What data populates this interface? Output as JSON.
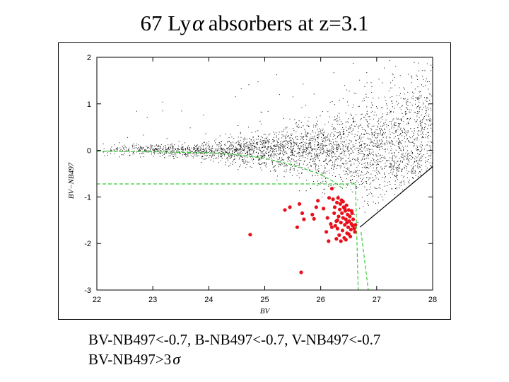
{
  "slide": {
    "title_prefix": "67 Ly",
    "title_greek": "α",
    "title_suffix": "absorbers at z=3.1",
    "caption_line1": "BV-NB497<-0.7,  B-NB497<-0.7, V-NB497<-0.7",
    "caption_line2_prefix": "BV-NB497>3",
    "caption_line2_greek": "σ"
  },
  "chart_data": {
    "type": "scatter",
    "title": "",
    "xlabel": "BV",
    "ylabel": "BV−NB497",
    "xlim": [
      22,
      28
    ],
    "ylim": [
      -3,
      2
    ],
    "x_ticks": [
      "22",
      "23",
      "24",
      "25",
      "26",
      "27",
      "28"
    ],
    "y_ticks": [
      "2",
      "1",
      "0",
      "-1",
      "-2",
      "-3"
    ],
    "grid": false,
    "legend": "none",
    "colors": {
      "field": "#000000",
      "absorbers": "#e8101a",
      "selection": "#33cc33"
    },
    "field_population": {
      "description": "dense cloud of all detected objects, widening toward faint BV; lower envelope cut by limiting-magnitude line",
      "locus_y": 0.0,
      "limit_line": [
        [
          26.7,
          -1.65
        ],
        [
          28.0,
          -0.35
        ]
      ]
    },
    "selection_lines": [
      {
        "points": [
          [
            22,
            -0.02
          ],
          [
            23,
            -0.03
          ],
          [
            24,
            -0.05
          ],
          [
            24.5,
            -0.09
          ],
          [
            25.0,
            -0.17
          ],
          [
            25.5,
            -0.31
          ],
          [
            26.0,
            -0.52
          ],
          [
            26.2,
            -0.65
          ],
          [
            26.4,
            -0.82
          ]
        ]
      },
      {
        "points": [
          [
            22,
            -0.72
          ],
          [
            26.62,
            -0.72
          ],
          [
            26.67,
            -3.0
          ]
        ]
      },
      {
        "points": [
          [
            26.72,
            -1.75
          ],
          [
            26.85,
            -3.0
          ]
        ]
      }
    ],
    "series": [
      {
        "points": [
          [
            24.74,
            -1.81
          ],
          [
            25.65,
            -2.62
          ],
          [
            25.36,
            -1.28
          ],
          [
            25.45,
            -1.22
          ],
          [
            25.62,
            -1.15
          ],
          [
            25.67,
            -1.35
          ],
          [
            25.7,
            -1.48
          ],
          [
            25.58,
            -1.65
          ],
          [
            25.85,
            -1.38
          ],
          [
            25.88,
            -1.47
          ],
          [
            25.92,
            -1.22
          ],
          [
            25.95,
            -1.08
          ],
          [
            26.05,
            -1.25
          ],
          [
            26.12,
            -1.45
          ],
          [
            26.15,
            -1.02
          ],
          [
            26.2,
            -0.82
          ],
          [
            26.1,
            -1.75
          ],
          [
            26.14,
            -1.95
          ],
          [
            26.18,
            -1.58
          ],
          [
            26.2,
            -1.65
          ],
          [
            26.24,
            -1.35
          ],
          [
            26.25,
            -1.22
          ],
          [
            26.28,
            -1.52
          ],
          [
            26.29,
            -1.12
          ],
          [
            26.3,
            -1.68
          ],
          [
            26.31,
            -1.02
          ],
          [
            26.32,
            -1.42
          ],
          [
            26.33,
            -1.82
          ],
          [
            26.34,
            -1.27
          ],
          [
            26.35,
            -1.15
          ],
          [
            26.36,
            -1.55
          ],
          [
            26.37,
            -1.07
          ],
          [
            26.38,
            -1.35
          ],
          [
            26.39,
            -1.72
          ],
          [
            26.4,
            -1.45
          ],
          [
            26.41,
            -1.22
          ],
          [
            26.42,
            -1.88
          ],
          [
            26.43,
            -1.6
          ],
          [
            26.44,
            -1.3
          ],
          [
            26.45,
            -1.48
          ],
          [
            26.46,
            -1.18
          ],
          [
            26.47,
            -1.78
          ],
          [
            26.48,
            -1.38
          ],
          [
            26.49,
            -1.65
          ],
          [
            26.5,
            -1.28
          ],
          [
            26.51,
            -1.52
          ],
          [
            26.52,
            -1.42
          ],
          [
            26.53,
            -1.85
          ],
          [
            26.54,
            -1.7
          ],
          [
            26.55,
            -1.58
          ],
          [
            26.56,
            -1.35
          ],
          [
            26.57,
            -1.62
          ],
          [
            26.58,
            -1.48
          ],
          [
            26.6,
            -1.68
          ],
          [
            26.61,
            -1.75
          ],
          [
            26.62,
            -1.6
          ],
          [
            26.28,
            -1.9
          ],
          [
            26.36,
            -1.95
          ],
          [
            26.45,
            -1.92
          ],
          [
            26.22,
            -1.05
          ],
          [
            26.3,
            -1.5
          ],
          [
            26.4,
            -1.1
          ],
          [
            26.5,
            -1.8
          ],
          [
            26.55,
            -1.3
          ],
          [
            26.43,
            -1.25
          ],
          [
            26.47,
            -1.55
          ],
          [
            26.26,
            -1.62
          ]
        ]
      }
    ]
  }
}
